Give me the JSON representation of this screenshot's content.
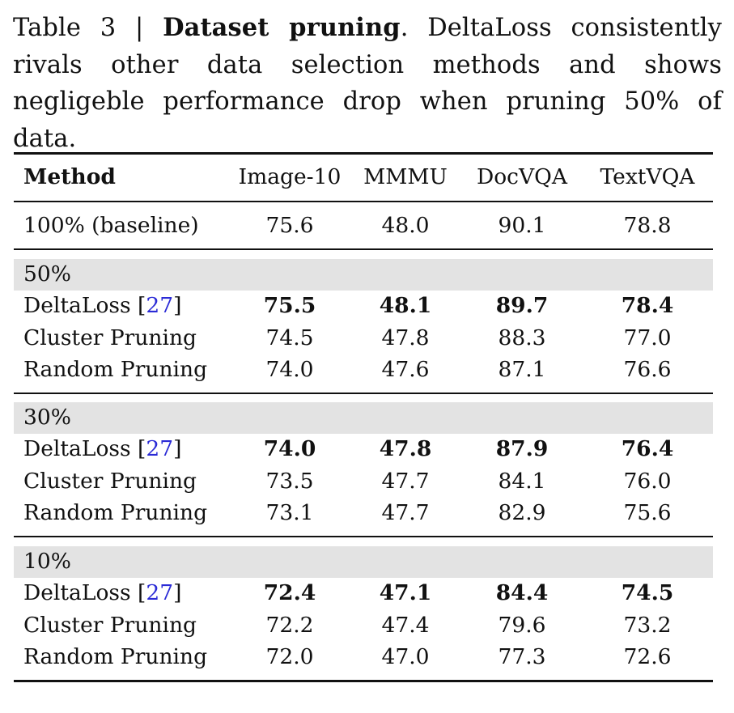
{
  "caption": {
    "label": "Table 3 | ",
    "bold_title": "Dataset pruning",
    "text": ". DeltaLoss consistently rivals other data selection methods and shows negligeble performance drop when pruning 50% of data."
  },
  "table": {
    "headers": [
      "Method",
      "Image-10",
      "MMMU",
      "DocVQA",
      "TextVQA"
    ],
    "baseline": {
      "method": "100% (baseline)",
      "values": [
        "75.6",
        "48.0",
        "90.1",
        "78.8"
      ]
    },
    "groups": [
      {
        "label": "50%",
        "rows": [
          {
            "method": "DeltaLoss",
            "ref": "27",
            "values": [
              "75.5",
              "48.1",
              "89.7",
              "78.4"
            ],
            "bold": true
          },
          {
            "method": "Cluster Pruning",
            "ref": "",
            "values": [
              "74.5",
              "47.8",
              "88.3",
              "77.0"
            ],
            "bold": false
          },
          {
            "method": "Random Pruning",
            "ref": "",
            "values": [
              "74.0",
              "47.6",
              "87.1",
              "76.6"
            ],
            "bold": false
          }
        ]
      },
      {
        "label": "30%",
        "rows": [
          {
            "method": "DeltaLoss",
            "ref": "27",
            "values": [
              "74.0",
              "47.8",
              "87.9",
              "76.4"
            ],
            "bold": true
          },
          {
            "method": "Cluster Pruning",
            "ref": "",
            "values": [
              "73.5",
              "47.7",
              "84.1",
              "76.0"
            ],
            "bold": false
          },
          {
            "method": "Random Pruning",
            "ref": "",
            "values": [
              "73.1",
              "47.7",
              "82.9",
              "75.6"
            ],
            "bold": false
          }
        ]
      },
      {
        "label": "10%",
        "rows": [
          {
            "method": "DeltaLoss",
            "ref": "27",
            "values": [
              "72.4",
              "47.1",
              "84.4",
              "74.5"
            ],
            "bold": true
          },
          {
            "method": "Cluster Pruning",
            "ref": "",
            "values": [
              "72.2",
              "47.4",
              "79.6",
              "73.2"
            ],
            "bold": false
          },
          {
            "method": "Random Pruning",
            "ref": "",
            "values": [
              "72.0",
              "47.0",
              "77.3",
              "72.6"
            ],
            "bold": false
          }
        ]
      }
    ]
  },
  "colors": {
    "text": "#111111",
    "group_band": "#e3e3e3",
    "citation_link": "#2b2bd6"
  }
}
